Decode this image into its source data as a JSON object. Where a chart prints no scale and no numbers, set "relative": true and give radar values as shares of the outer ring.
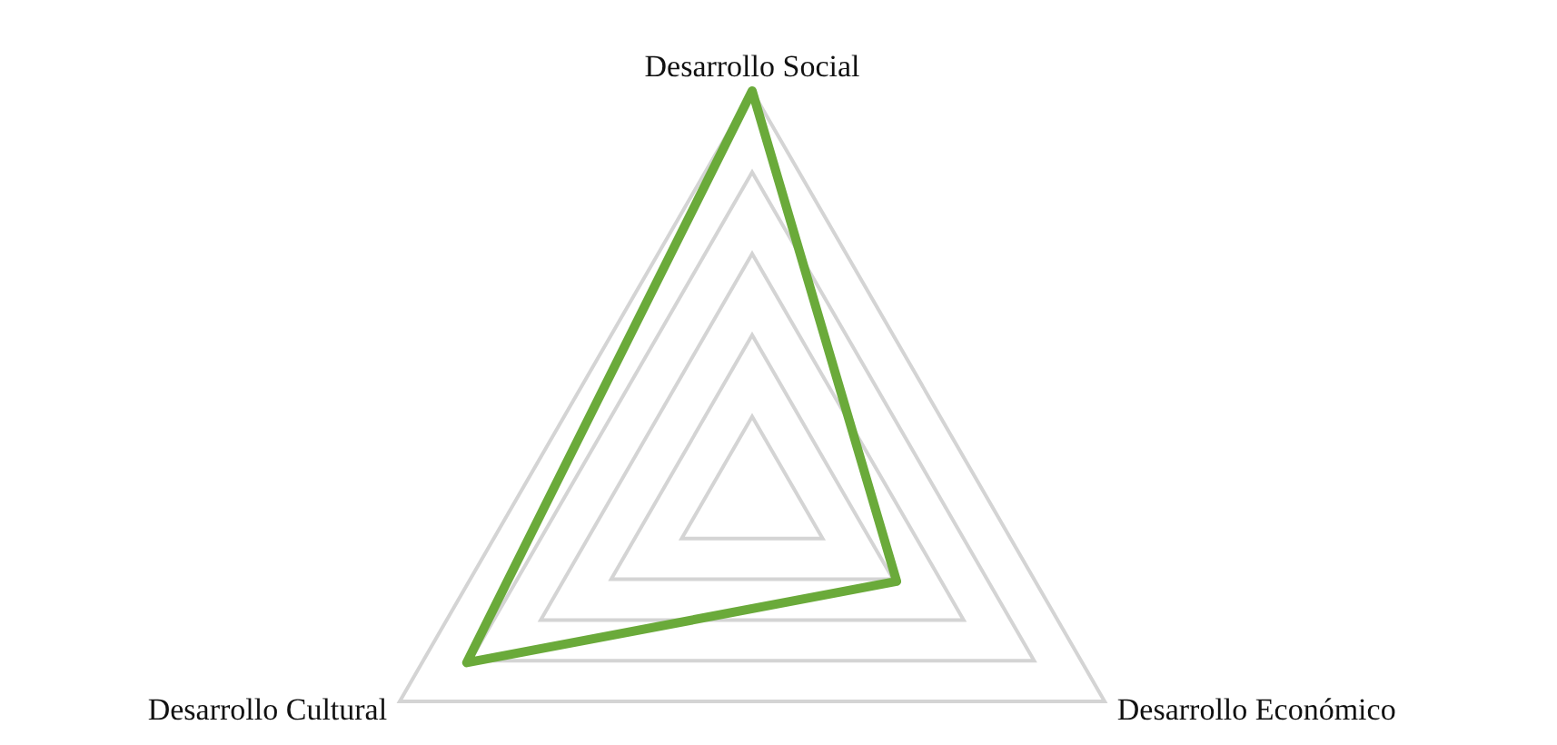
{
  "chart_data": {
    "type": "radar",
    "relative": true,
    "grid": true,
    "marker": "none",
    "categories": [
      "Desarrollo Social",
      "Desarrollo Económico",
      "Desarrollo Cultural"
    ],
    "series": [
      {
        "color": "#6aaa3a",
        "values": [
          1,
          0.41,
          0.81
        ]
      }
    ]
  }
}
